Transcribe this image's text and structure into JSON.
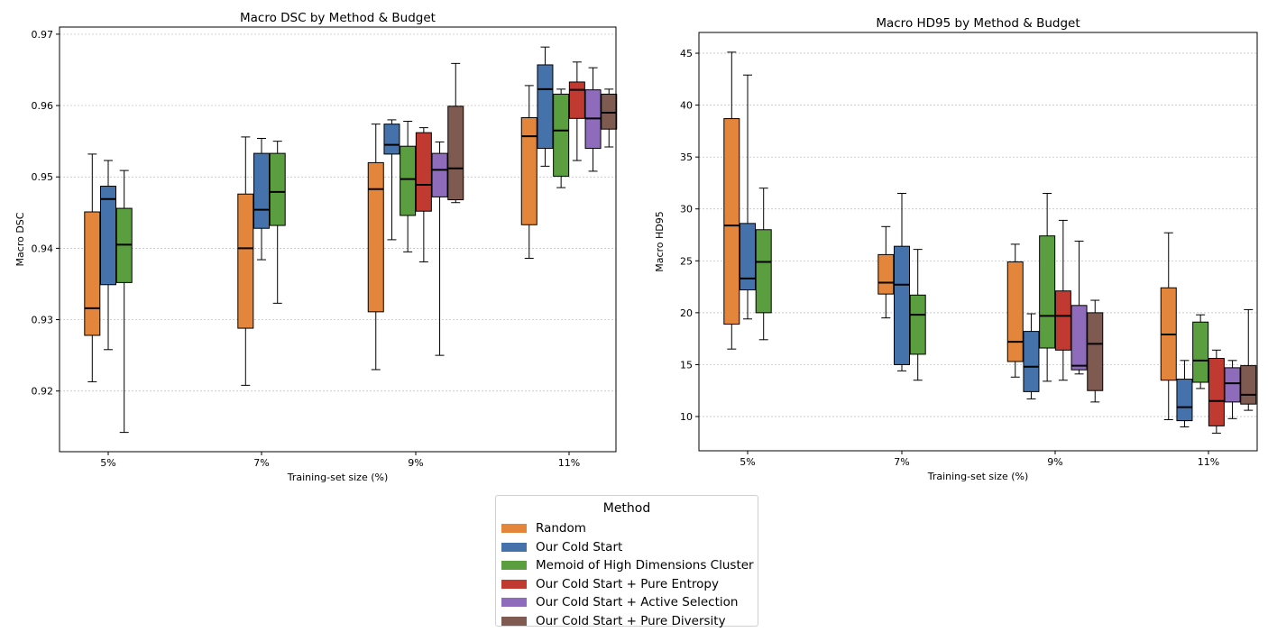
{
  "chart_data": [
    {
      "type": "boxplot",
      "title": "Macro DSC by Method & Budget",
      "xlabel": "Training-set size (%)",
      "ylabel": "Macro DSC",
      "categories": [
        "5%",
        "7%",
        "9%",
        "11%"
      ],
      "ylim": [
        0.9115,
        0.971
      ],
      "yticks": [
        0.92,
        0.93,
        0.94,
        0.95,
        0.96,
        0.97
      ],
      "ytick_labels": [
        "0.92",
        "0.93",
        "0.94",
        "0.95",
        "0.96",
        "0.97"
      ],
      "grid": "y",
      "groups": [
        {
          "category": "5%",
          "boxes": [
            {
              "series": "Random",
              "whislo": 0.9213,
              "q1": 0.9278,
              "med": 0.9316,
              "q3": 0.9451,
              "whishi": 0.9532
            },
            {
              "series": "Our Cold Start",
              "whislo": 0.9258,
              "q1": 0.9349,
              "med": 0.9469,
              "q3": 0.9487,
              "whishi": 0.9523
            },
            {
              "series": "Memoid of High Dimensions Cluster",
              "whislo": 0.9142,
              "q1": 0.9352,
              "med": 0.9405,
              "q3": 0.9456,
              "whishi": 0.9509
            }
          ]
        },
        {
          "category": "7%",
          "boxes": [
            {
              "series": "Random",
              "whislo": 0.9208,
              "q1": 0.9288,
              "med": 0.94,
              "q3": 0.9476,
              "whishi": 0.9556
            },
            {
              "series": "Our Cold Start",
              "whislo": 0.9384,
              "q1": 0.9428,
              "med": 0.9454,
              "q3": 0.9533,
              "whishi": 0.9554
            },
            {
              "series": "Memoid of High Dimensions Cluster",
              "whislo": 0.9323,
              "q1": 0.9432,
              "med": 0.9479,
              "q3": 0.9533,
              "whishi": 0.955
            }
          ]
        },
        {
          "category": "9%",
          "boxes": [
            {
              "series": "Random",
              "whislo": 0.923,
              "q1": 0.9311,
              "med": 0.9483,
              "q3": 0.952,
              "whishi": 0.9574
            },
            {
              "series": "Our Cold Start",
              "whislo": 0.9412,
              "q1": 0.9532,
              "med": 0.9545,
              "q3": 0.9574,
              "whishi": 0.958
            },
            {
              "series": "Memoid of High Dimensions Cluster",
              "whislo": 0.9395,
              "q1": 0.9446,
              "med": 0.9497,
              "q3": 0.9543,
              "whishi": 0.9578
            },
            {
              "series": "Our Cold Start + Pure Entropy",
              "whislo": 0.9381,
              "q1": 0.9452,
              "med": 0.9489,
              "q3": 0.9562,
              "whishi": 0.9569
            },
            {
              "series": "Our Cold Start + Active Selection",
              "whislo": 0.925,
              "q1": 0.9472,
              "med": 0.951,
              "q3": 0.9533,
              "whishi": 0.9549
            },
            {
              "series": "Our Cold Start + Pure Diversity",
              "whislo": 0.9464,
              "q1": 0.9468,
              "med": 0.9512,
              "q3": 0.9599,
              "whishi": 0.9659
            }
          ]
        },
        {
          "category": "11%",
          "boxes": [
            {
              "series": "Random",
              "whislo": 0.9386,
              "q1": 0.9433,
              "med": 0.9557,
              "q3": 0.9583,
              "whishi": 0.9628
            },
            {
              "series": "Our Cold Start",
              "whislo": 0.9515,
              "q1": 0.954,
              "med": 0.9623,
              "q3": 0.9657,
              "whishi": 0.9682
            },
            {
              "series": "Memoid of High Dimensions Cluster",
              "whislo": 0.9485,
              "q1": 0.9501,
              "med": 0.9565,
              "q3": 0.9616,
              "whishi": 0.9623
            },
            {
              "series": "Our Cold Start + Pure Entropy",
              "whislo": 0.9523,
              "q1": 0.9582,
              "med": 0.9622,
              "q3": 0.9633,
              "whishi": 0.9661
            },
            {
              "series": "Our Cold Start + Active Selection",
              "whislo": 0.9508,
              "q1": 0.954,
              "med": 0.9582,
              "q3": 0.9622,
              "whishi": 0.9653
            },
            {
              "series": "Our Cold Start + Pure Diversity",
              "whislo": 0.9542,
              "q1": 0.9567,
              "med": 0.959,
              "q3": 0.9616,
              "whishi": 0.9623
            }
          ]
        }
      ]
    },
    {
      "type": "boxplot",
      "title": "Macro HD95 by Method & Budget",
      "xlabel": "Training-set size (%)",
      "ylabel": "Macro HD95",
      "categories": [
        "5%",
        "7%",
        "9%",
        "11%"
      ],
      "ylim": [
        6.7,
        47.0
      ],
      "yticks": [
        10,
        15,
        20,
        25,
        30,
        35,
        40,
        45
      ],
      "ytick_labels": [
        "10",
        "15",
        "20",
        "25",
        "30",
        "35",
        "40",
        "45"
      ],
      "grid": "y",
      "groups": [
        {
          "category": "5%",
          "boxes": [
            {
              "series": "Random",
              "whislo": 16.5,
              "q1": 18.9,
              "med": 28.4,
              "q3": 38.7,
              "whishi": 45.1
            },
            {
              "series": "Our Cold Start",
              "whislo": 19.4,
              "q1": 22.2,
              "med": 23.3,
              "q3": 28.6,
              "whishi": 42.9
            },
            {
              "series": "Memoid of High Dimensions Cluster",
              "whislo": 17.4,
              "q1": 20.0,
              "med": 24.9,
              "q3": 28.0,
              "whishi": 32.0
            }
          ]
        },
        {
          "category": "7%",
          "boxes": [
            {
              "series": "Random",
              "whislo": 19.5,
              "q1": 21.8,
              "med": 22.9,
              "q3": 25.6,
              "whishi": 28.3
            },
            {
              "series": "Our Cold Start",
              "whislo": 14.4,
              "q1": 15.0,
              "med": 22.7,
              "q3": 26.4,
              "whishi": 31.5
            },
            {
              "series": "Memoid of High Dimensions Cluster",
              "whislo": 13.5,
              "q1": 16.0,
              "med": 19.8,
              "q3": 21.7,
              "whishi": 26.1
            }
          ]
        },
        {
          "category": "9%",
          "boxes": [
            {
              "series": "Random",
              "whislo": 13.8,
              "q1": 15.3,
              "med": 17.2,
              "q3": 24.9,
              "whishi": 26.6
            },
            {
              "series": "Our Cold Start",
              "whislo": 11.7,
              "q1": 12.4,
              "med": 14.8,
              "q3": 18.2,
              "whishi": 19.9
            },
            {
              "series": "Memoid of High Dimensions Cluster",
              "whislo": 13.4,
              "q1": 16.6,
              "med": 19.7,
              "q3": 27.4,
              "whishi": 31.5
            },
            {
              "series": "Our Cold Start + Pure Entropy",
              "whislo": 13.5,
              "q1": 16.4,
              "med": 19.7,
              "q3": 22.1,
              "whishi": 28.9
            },
            {
              "series": "Our Cold Start + Active Selection",
              "whislo": 14.1,
              "q1": 14.5,
              "med": 14.9,
              "q3": 20.7,
              "whishi": 26.9
            },
            {
              "series": "Our Cold Start + Pure Diversity",
              "whislo": 11.4,
              "q1": 12.5,
              "med": 17.0,
              "q3": 20.0,
              "whishi": 21.2
            }
          ]
        },
        {
          "category": "11%",
          "boxes": [
            {
              "series": "Random",
              "whislo": 9.7,
              "q1": 13.5,
              "med": 17.9,
              "q3": 22.4,
              "whishi": 27.7
            },
            {
              "series": "Our Cold Start",
              "whislo": 9.0,
              "q1": 9.6,
              "med": 10.9,
              "q3": 13.6,
              "whishi": 15.4
            },
            {
              "series": "Memoid of High Dimensions Cluster",
              "whislo": 12.7,
              "q1": 13.3,
              "med": 15.4,
              "q3": 19.1,
              "whishi": 19.8
            },
            {
              "series": "Our Cold Start + Pure Entropy",
              "whislo": 8.4,
              "q1": 9.1,
              "med": 11.5,
              "q3": 15.6,
              "whishi": 16.4
            },
            {
              "series": "Our Cold Start + Active Selection",
              "whislo": 9.8,
              "q1": 11.4,
              "med": 13.2,
              "q3": 14.7,
              "whishi": 15.4
            },
            {
              "series": "Our Cold Start + Pure Diversity",
              "whislo": 10.6,
              "q1": 11.2,
              "med": 12.1,
              "q3": 14.9,
              "whishi": 20.3
            }
          ]
        }
      ]
    }
  ],
  "legend": {
    "title": "Method",
    "placement": "bottom-center",
    "items": [
      {
        "label": "Random",
        "color": "#e3853a"
      },
      {
        "label": "Our Cold Start",
        "color": "#4572aa"
      },
      {
        "label": "Memoid of High Dimensions Cluster",
        "color": "#5a9e3f"
      },
      {
        "label": "Our Cold Start + Pure Entropy",
        "color": "#c13a32"
      },
      {
        "label": "Our Cold Start + Active Selection",
        "color": "#8f6bbb"
      },
      {
        "label": "Our Cold Start + Pure Diversity",
        "color": "#7f5a50"
      }
    ]
  }
}
